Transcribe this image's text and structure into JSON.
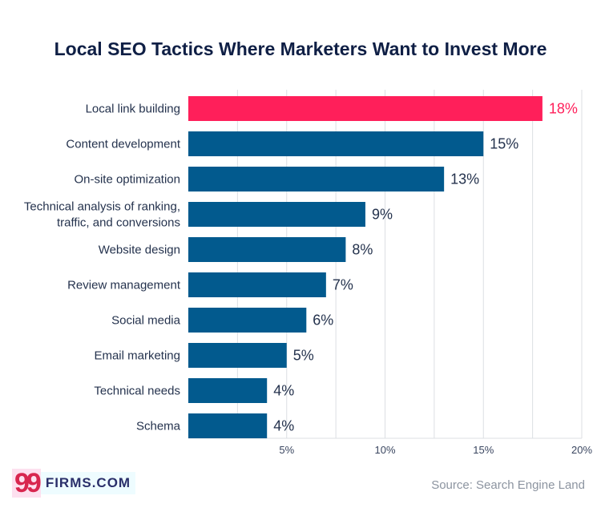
{
  "chart_data": {
    "type": "bar",
    "orientation": "horizontal",
    "title": "Local SEO Tactics Where Marketers Want to Invest More",
    "categories": [
      [
        "Local link building"
      ],
      [
        "Content development"
      ],
      [
        "On-site optimization"
      ],
      [
        "Technical analysis of ranking,",
        "traffic, and conversions"
      ],
      [
        "Website design"
      ],
      [
        "Review management"
      ],
      [
        "Social media"
      ],
      [
        "Email marketing"
      ],
      [
        "Technical needs"
      ],
      [
        "Schema"
      ]
    ],
    "values": [
      18,
      15,
      13,
      9,
      8,
      7,
      6,
      5,
      4,
      4
    ],
    "value_labels": [
      "18%",
      "15%",
      "13%",
      "9%",
      "8%",
      "7%",
      "6%",
      "5%",
      "4%",
      "4%"
    ],
    "xlim": [
      0,
      20
    ],
    "ticks": [
      5,
      10,
      15,
      20
    ],
    "tick_labels": [
      "5%",
      "10%",
      "15%",
      "20%"
    ],
    "grid": true,
    "colors": {
      "highlight": "#ff1f5a",
      "bar": "#025a8e",
      "grid": "#dcdfe3"
    },
    "highlight_index": 0
  },
  "footer": {
    "logo_mark": "99",
    "logo_text": "FIRMS.COM",
    "source": "Source: Search Engine Land"
  }
}
